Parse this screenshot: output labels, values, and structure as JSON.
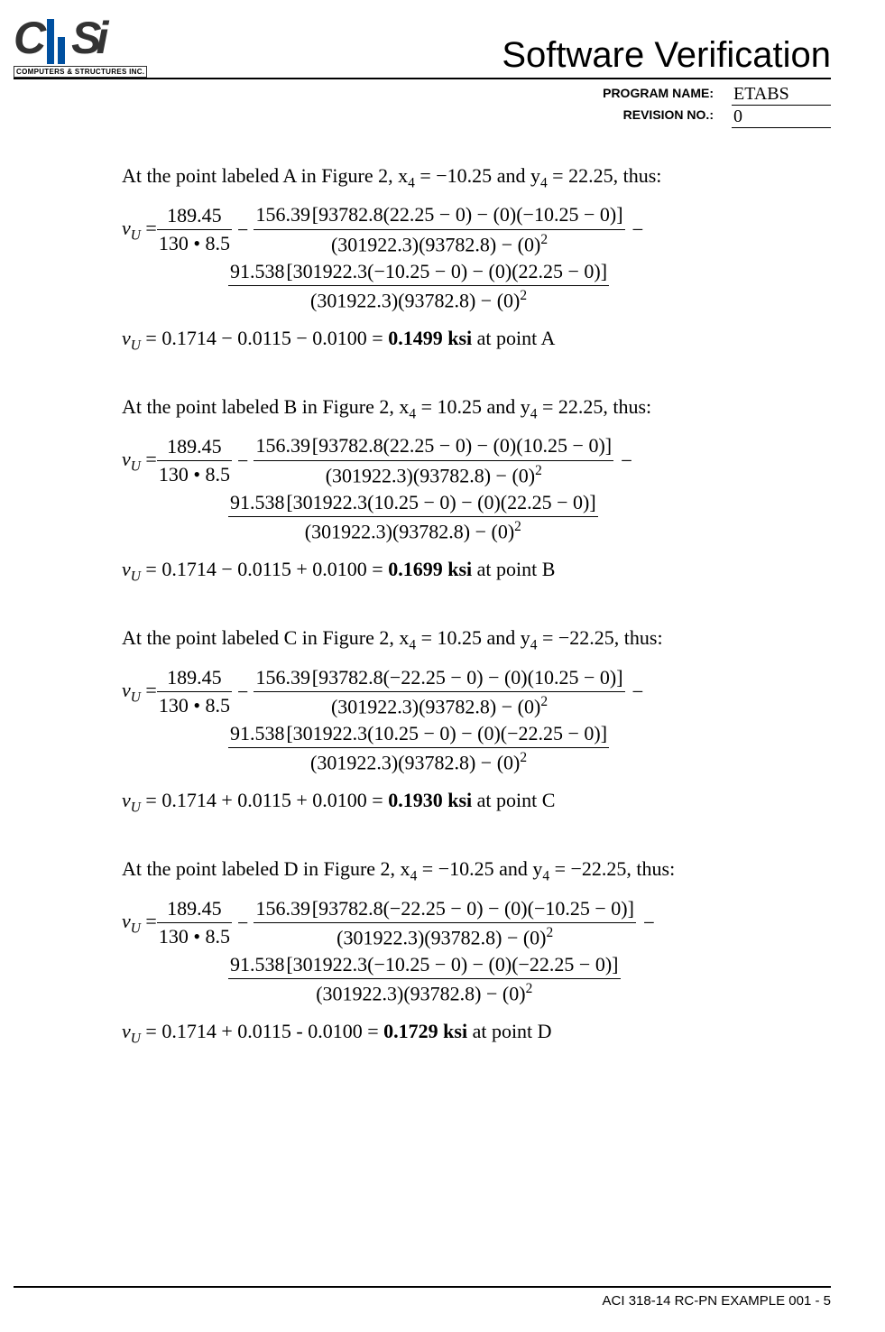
{
  "header": {
    "logo_sub": "COMPUTERS & STRUCTURES INC.",
    "title": "Software Verification",
    "program_label": "PROGRAM NAME:",
    "revision_label": "REVISION NO.:",
    "program_value": "ETABS",
    "revision_value": "0"
  },
  "constants": {
    "vu_simple": "189.45",
    "vu_denom_simple": "130 • 8.5",
    "c2_num": "156.39",
    "c3_num": "91.538",
    "I33": "93782.8",
    "I22": "301922.3",
    "denom_full_a": "(301922.3)(93782.8) − (0)",
    "denom_full_b": "(301922.3)(93782.8) − (0)",
    "zero": "0"
  },
  "points": {
    "A": {
      "intro_prefix": "At the point labeled A in Figure 2, x",
      "x4": "−10.25",
      "y4": "22.25",
      "num1_expr": "93782.8(22.25 − 0) − (0)(−10.25 − 0)",
      "num2_expr": "301922.3(−10.25 − 0) − (0)(22.25 − 0)",
      "result_expr": "0.1714 − 0.0115 − 0.0100 = ",
      "result_value": "0.1499 ksi",
      "result_suffix": " at point A"
    },
    "B": {
      "intro_prefix": "At the point labeled B in Figure 2, x",
      "x4": "10.25",
      "y4": "22.25",
      "num1_expr": "93782.8(22.25 − 0) − (0)(10.25 − 0)",
      "num2_expr": "301922.3(10.25 − 0) − (0)(22.25 − 0)",
      "result_expr": "0.1714 − 0.0115 + 0.0100 = ",
      "result_value": "0.1699 ksi",
      "result_suffix": " at point B"
    },
    "C": {
      "intro_prefix": "At the point labeled C in Figure 2, x",
      "x4": "10.25",
      "y4": "−22.25",
      "num1_expr": "93782.8(−22.25 − 0) − (0)(10.25 − 0)",
      "num2_expr": "301922.3(10.25 − 0) − (0)(−22.25 − 0)",
      "result_expr": "0.1714 + 0.0115 + 0.0100 = ",
      "result_value": "0.1930 ksi",
      "result_suffix": " at point C"
    },
    "D": {
      "intro_prefix": "At the point labeled D in Figure 2, x",
      "x4": "−10.25",
      "y4": "−22.25",
      "num1_expr": "93782.8(−22.25 − 0) − (0)(−10.25 − 0)",
      "num2_expr": "301922.3(−10.25 − 0) − (0)(−22.25 − 0)",
      "result_expr": "0.1714 + 0.0115 - 0.0100 = ",
      "result_value": "0.1729 ksi",
      "result_suffix": " at point D"
    }
  },
  "footer": "ACI 318-14 RC-PN EXAMPLE 001 - 5"
}
